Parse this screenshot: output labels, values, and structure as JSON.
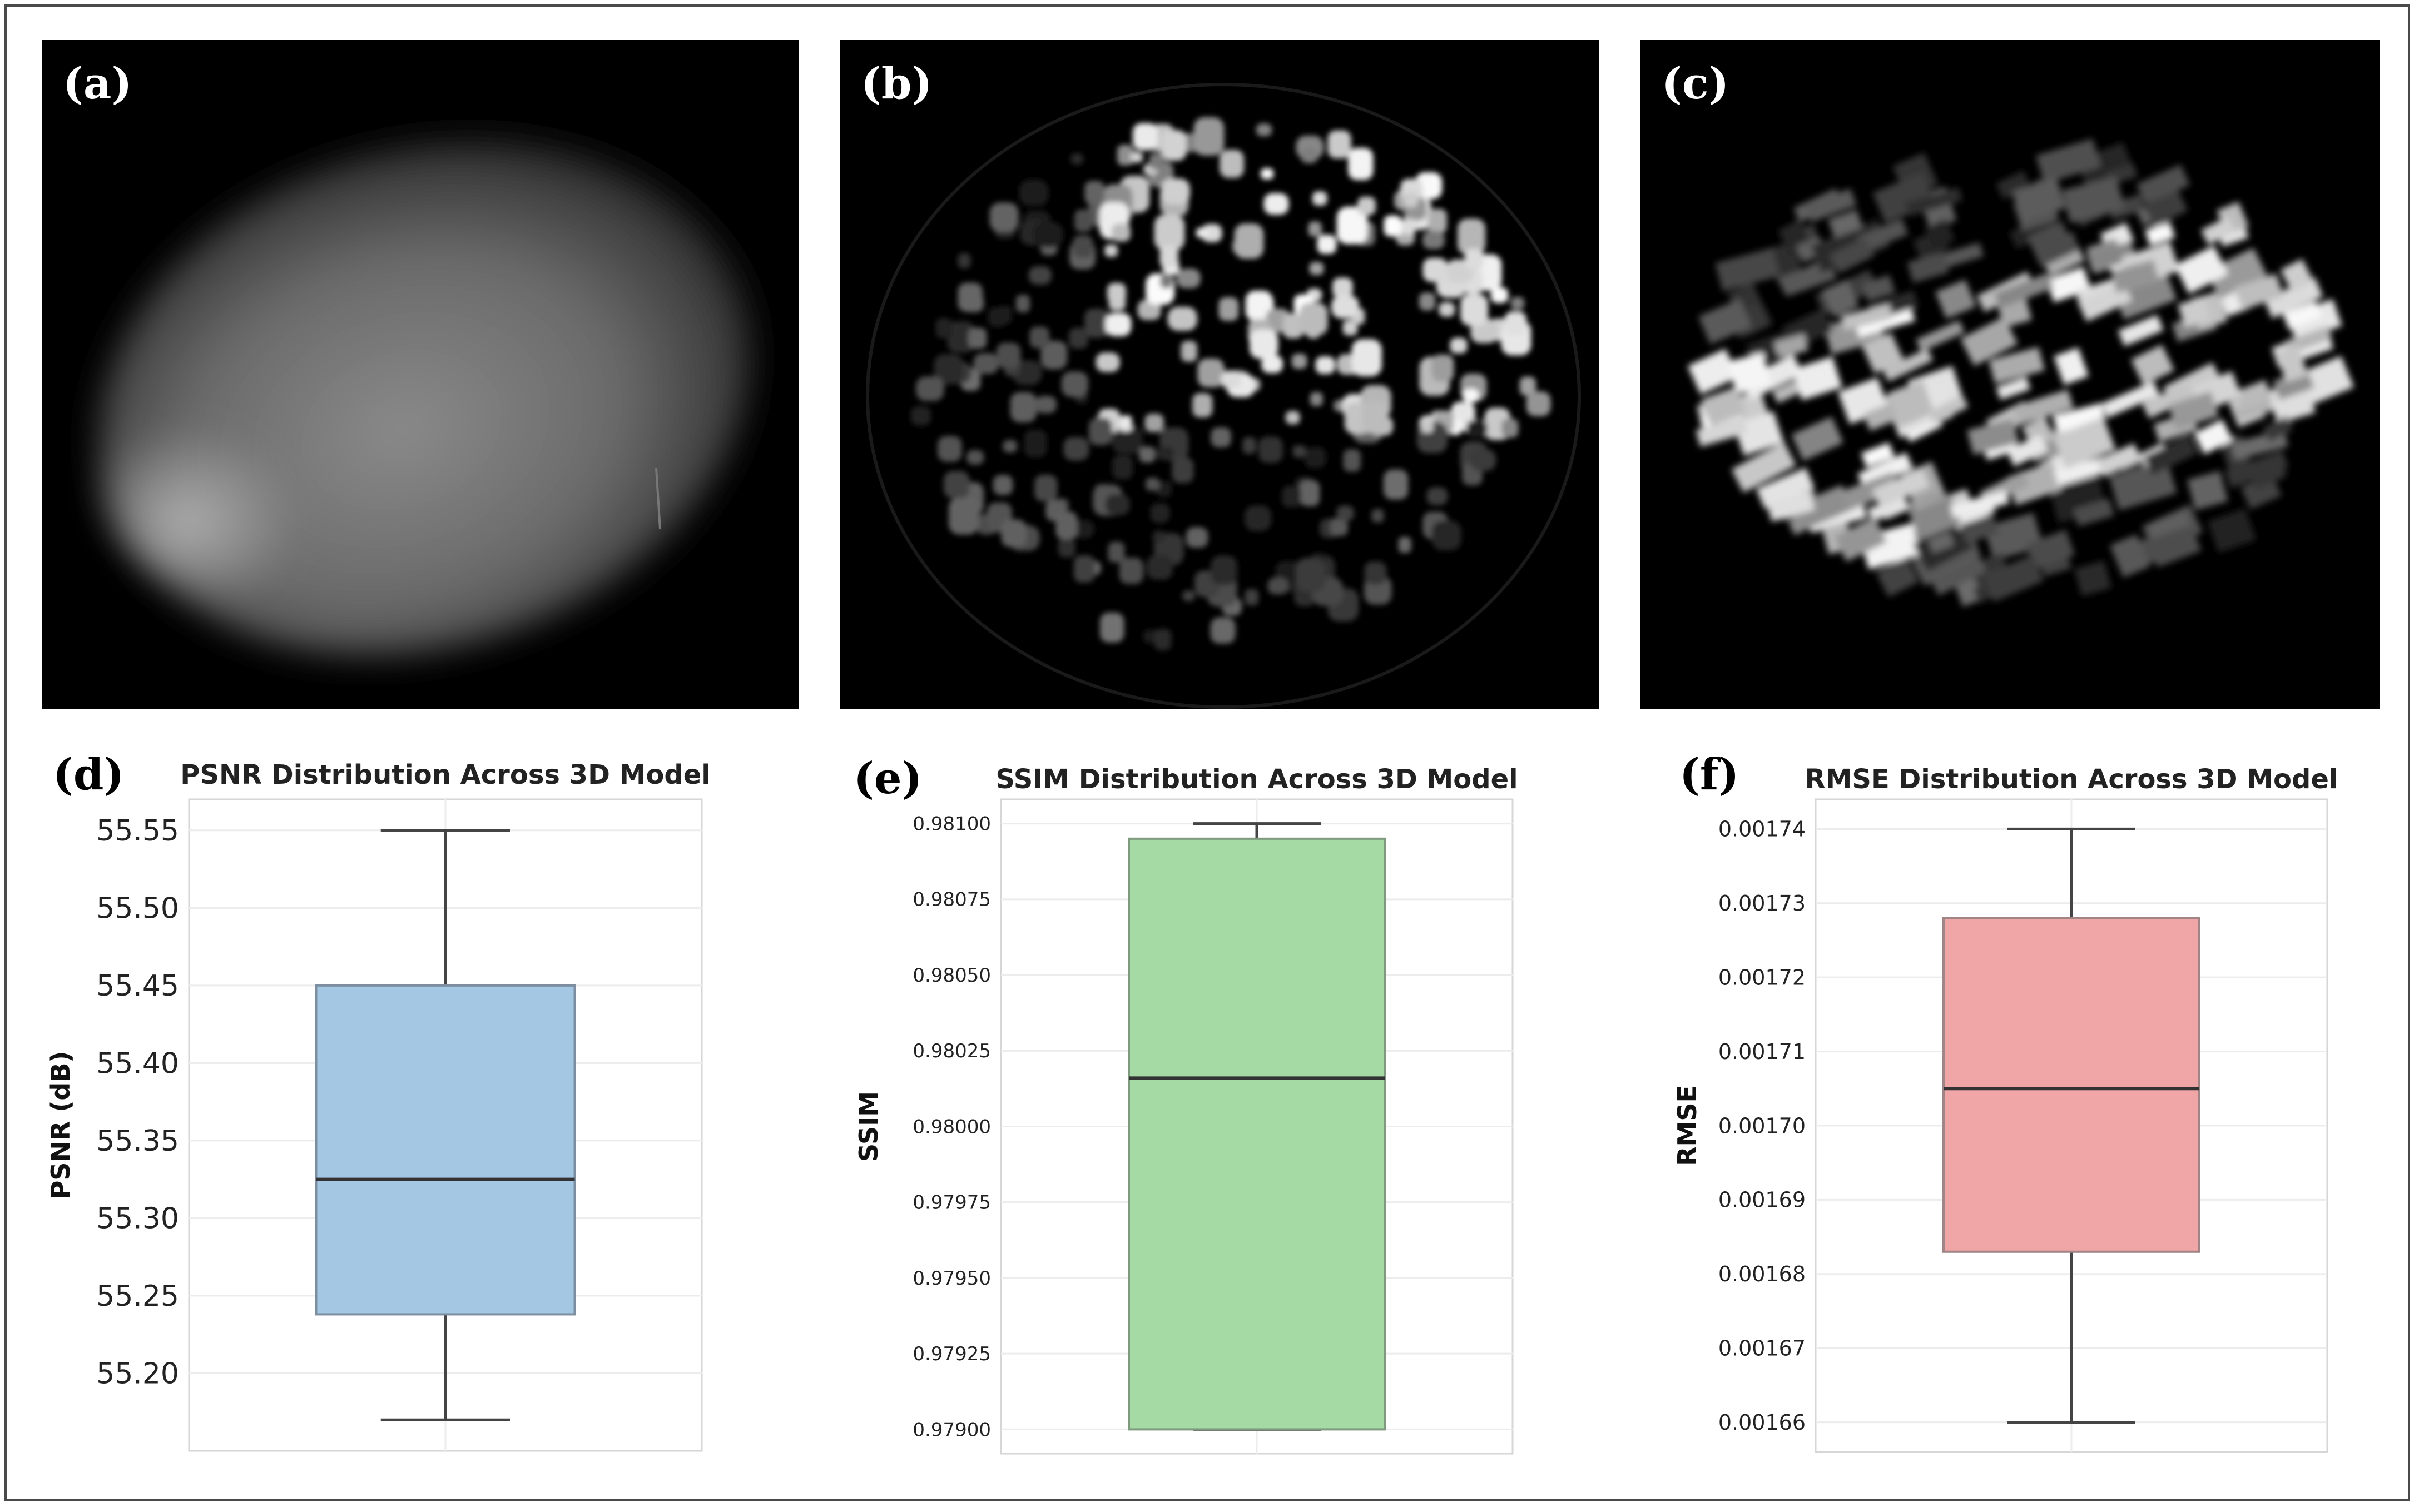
{
  "panels": {
    "a": {
      "label": "(a)"
    },
    "b": {
      "label": "(b)"
    },
    "c": {
      "label": "(c)"
    },
    "d": {
      "label": "(d)"
    },
    "e": {
      "label": "(e)"
    },
    "f": {
      "label": "(f)"
    }
  },
  "chart_data": [
    {
      "type": "box",
      "title": "PSNR Distribution Across 3D Model",
      "xlabel": "",
      "ylabel": "PSNR (dB)",
      "ylim": [
        55.15,
        55.57
      ],
      "yticks": [
        55.2,
        55.25,
        55.3,
        55.35,
        55.4,
        55.45,
        55.5,
        55.55
      ],
      "ytick_labels": [
        "55.20",
        "55.25",
        "55.30",
        "55.35",
        "55.40",
        "55.45",
        "55.50",
        "55.55"
      ],
      "box": {
        "min": 55.17,
        "q1": 55.238,
        "median": 55.325,
        "q3": 55.45,
        "max": 55.55
      },
      "color": "#a4c8e4",
      "edge_color": "#7d8ea0",
      "grid": true
    },
    {
      "type": "box",
      "title": "SSIM Distribution Across 3D Model",
      "xlabel": "",
      "ylabel": "SSIM",
      "ylim": [
        0.97892,
        0.98108
      ],
      "yticks": [
        0.979,
        0.97925,
        0.9795,
        0.97975,
        0.98,
        0.98025,
        0.9805,
        0.98075,
        0.981
      ],
      "ytick_labels": [
        "0.97900",
        "0.97925",
        "0.97950",
        "0.97975",
        "0.98000",
        "0.98025",
        "0.98050",
        "0.98075",
        "0.98100"
      ],
      "box": {
        "min": 0.979,
        "q1": 0.979,
        "median": 0.98016,
        "q3": 0.98095,
        "max": 0.981
      },
      "color": "#a6daa5",
      "edge_color": "#7f9a7f",
      "grid": true
    },
    {
      "type": "box",
      "title": "RMSE Distribution Across 3D Model",
      "xlabel": "",
      "ylabel": "RMSE",
      "ylim": [
        0.001656,
        0.001744
      ],
      "yticks": [
        0.00166,
        0.00167,
        0.00168,
        0.00169,
        0.0017,
        0.00171,
        0.00172,
        0.00173,
        0.00174
      ],
      "ytick_labels": [
        "0.00166",
        "0.00167",
        "0.00168",
        "0.00169",
        "0.00170",
        "0.00171",
        "0.00172",
        "0.00173",
        "0.00174"
      ],
      "box": {
        "min": 0.00166,
        "q1": 0.001683,
        "median": 0.001705,
        "q3": 0.001728,
        "max": 0.00174
      },
      "color": "#f0a5a7",
      "edge_color": "#a08586",
      "grid": true
    }
  ]
}
